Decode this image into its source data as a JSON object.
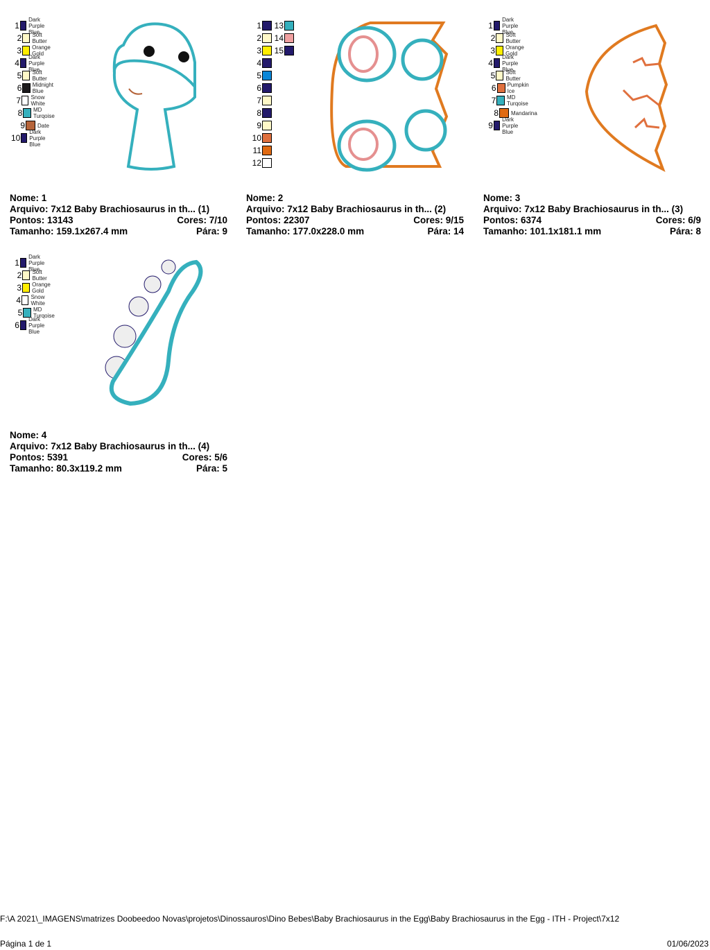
{
  "designs": [
    {
      "nome": "Nome: 1",
      "arquivo": "Arquivo: 7x12 Baby Brachiosaurus in th... (1)",
      "pontos": "Pontos: 13143",
      "cores": "Cores: 7/10",
      "tamanho": "Tamanho: 159.1x267.4 mm",
      "para": "Pára: 9",
      "colors": [
        [
          "1",
          "Dark Purple Blue",
          "#231a6b"
        ],
        [
          "2",
          "Soft Butter",
          "#fff9c8"
        ],
        [
          "3",
          "Orange Gold",
          "#ffee00"
        ],
        [
          "4",
          "Dark Purple Blue",
          "#231a6b"
        ],
        [
          "5",
          "Soft Butter",
          "#fff9c8"
        ],
        [
          "6",
          "Midnight Blue",
          "#1c1a1c"
        ],
        [
          "7",
          "Snow White",
          "#ffffff"
        ],
        [
          "8",
          "MD Turqoise",
          "#35b0bd"
        ],
        [
          "9",
          "Date",
          "#b5643a"
        ],
        [
          "10",
          "Dark Purple Blue",
          "#231a6b"
        ]
      ]
    },
    {
      "nome": "Nome: 2",
      "arquivo": "Arquivo: 7x12 Baby Brachiosaurus in th... (2)",
      "pontos": "Pontos: 22307",
      "cores": "Cores: 9/15",
      "tamanho": "Tamanho: 177.0x228.0 mm",
      "para": "Pára: 14",
      "colors": [
        [
          "1",
          "",
          "#231a6b"
        ],
        [
          "2",
          "",
          "#fff9c8"
        ],
        [
          "3",
          "",
          "#ffee00"
        ],
        [
          "4",
          "",
          "#231a6b"
        ],
        [
          "5",
          "",
          "#0a86d8"
        ],
        [
          "6",
          "",
          "#231a6b"
        ],
        [
          "7",
          "",
          "#fff9c8"
        ],
        [
          "8",
          "",
          "#231a6b"
        ],
        [
          "9",
          "",
          "#fff9c8"
        ],
        [
          "10",
          "",
          "#e0703e"
        ],
        [
          "11",
          "",
          "#e06a12"
        ],
        [
          "12",
          "",
          "#ffffff"
        ],
        [
          "13",
          "",
          "#35b0bd"
        ],
        [
          "14",
          "",
          "#f0a0a0"
        ],
        [
          "15",
          "",
          "#231a6b"
        ]
      ]
    },
    {
      "nome": "Nome: 3",
      "arquivo": "Arquivo: 7x12 Baby Brachiosaurus in th... (3)",
      "pontos": "Pontos: 6374",
      "cores": "Cores: 6/9",
      "tamanho": "Tamanho: 101.1x181.1 mm",
      "para": "Pára: 8",
      "colors": [
        [
          "1",
          "Dark Purple Blue",
          "#231a6b"
        ],
        [
          "2",
          "Soft Butter",
          "#fff9c8"
        ],
        [
          "3",
          "Orange Gold",
          "#ffee00"
        ],
        [
          "4",
          "Dark Purple Blue",
          "#231a6b"
        ],
        [
          "5",
          "Soft Butter",
          "#fff9c8"
        ],
        [
          "6",
          "Pumpkin Ice",
          "#e0703e"
        ],
        [
          "7",
          "MD Turqoise",
          "#35b0bd"
        ],
        [
          "8",
          "Mandarina",
          "#e06a12"
        ],
        [
          "9",
          "Dark Purple Blue",
          "#231a6b"
        ]
      ]
    },
    {
      "nome": "Nome: 4",
      "arquivo": "Arquivo: 7x12 Baby Brachiosaurus in th... (4)",
      "pontos": "Pontos: 5391",
      "cores": "Cores: 5/6",
      "tamanho": "Tamanho: 80.3x119.2 mm",
      "para": "Pára: 5",
      "colors": [
        [
          "1",
          "Dark Purple Blue",
          "#231a6b"
        ],
        [
          "2",
          "Soft Butter",
          "#fff9c8"
        ],
        [
          "3",
          "Orange Gold",
          "#ffee00"
        ],
        [
          "4",
          "Snow White",
          "#ffffff"
        ],
        [
          "5",
          "MD Turqoise",
          "#35b0bd"
        ],
        [
          "6",
          "Dark Purple Blue",
          "#231a6b"
        ]
      ]
    }
  ],
  "footer": {
    "page": "Página 1 de 1",
    "path": "F:\\A 2021\\_IMAGENS\\matrizes Doobeedoo Novas\\projetos\\Dinossauros\\Dino Bebes\\Baby Brachiosaurus in the Egg\\Baby Brachiosaurus in the Egg - ITH - Project\\7x12",
    "date": "01/06/2023"
  }
}
